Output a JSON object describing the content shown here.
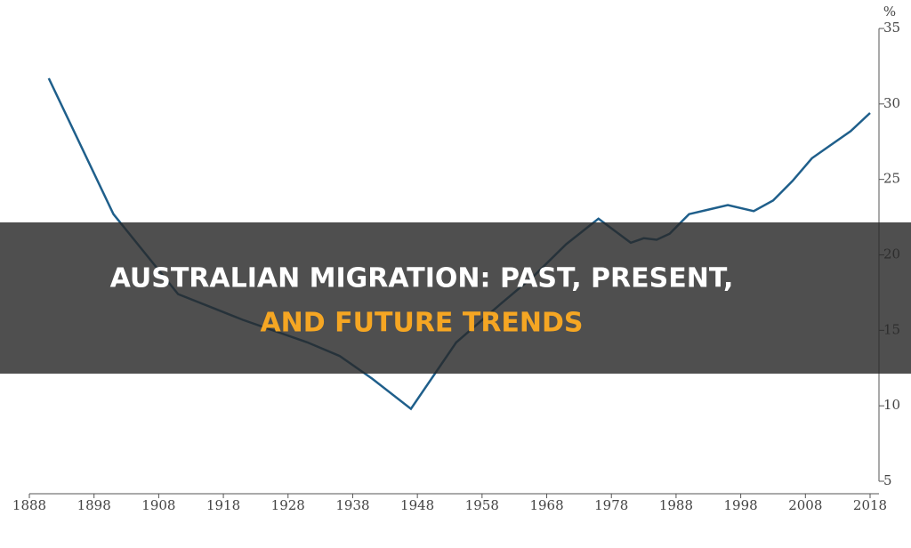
{
  "chart_data": {
    "type": "line",
    "title_lines": [
      "AUSTRALIAN MIGRATION: PAST, PRESENT,",
      "AND FUTURE TRENDS"
    ],
    "y_label": "%",
    "x": [
      1891,
      1901,
      1911,
      1921,
      1931,
      1936,
      1941,
      1947,
      1954,
      1961,
      1966,
      1971,
      1976,
      1981,
      1983,
      1985,
      1987,
      1990,
      1993,
      1996,
      2000,
      2003,
      2006,
      2009,
      2012,
      2015,
      2018
    ],
    "values": [
      31.7,
      22.7,
      17.4,
      15.7,
      14.2,
      13.3,
      11.8,
      9.8,
      14.2,
      16.8,
      18.6,
      20.7,
      22.4,
      20.8,
      21.1,
      21.0,
      21.4,
      22.7,
      23.0,
      23.3,
      22.9,
      23.6,
      24.9,
      26.4,
      27.3,
      28.2,
      29.4
    ],
    "color": "#1f5f8b",
    "xlim": [
      1888,
      2018
    ],
    "xticks": [
      1888,
      1898,
      1908,
      1918,
      1928,
      1938,
      1948,
      1958,
      1968,
      1978,
      1988,
      1998,
      2008,
      2018
    ],
    "ylim": [
      5,
      35
    ],
    "yticks": [
      5,
      10,
      15,
      20,
      25,
      30,
      35
    ]
  }
}
